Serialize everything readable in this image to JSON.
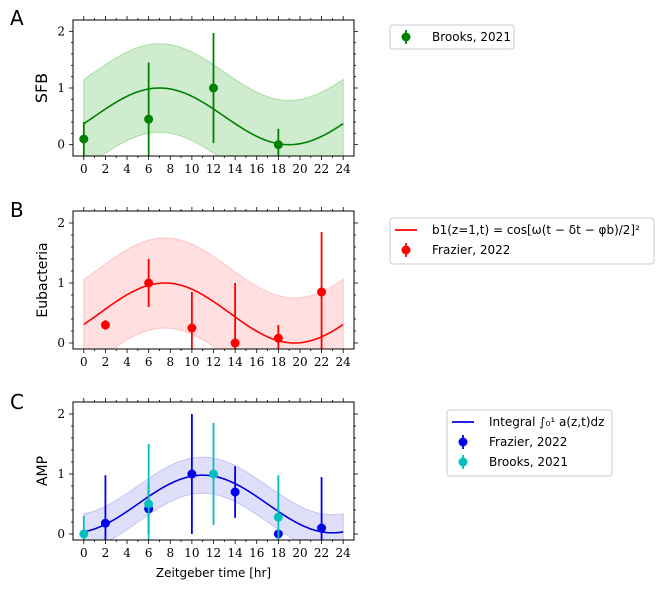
{
  "chart_data": [
    {
      "type": "line",
      "panel_label": "A",
      "ylabel": "SFB",
      "xlabel": "",
      "xlim": [
        -1,
        25
      ],
      "ylim": [
        -0.2,
        2.2
      ],
      "xticks": [
        0,
        2,
        4,
        6,
        8,
        10,
        12,
        14,
        16,
        18,
        20,
        22,
        24
      ],
      "yticks": [
        0,
        1,
        2
      ],
      "color": "#008000",
      "band_color": "#a8dca8",
      "curve": {
        "name": "",
        "amplitude_center": 0.5,
        "amplitude": 0.5,
        "peak_time": 7,
        "band_halfwidth": 0.78
      },
      "series": [
        {
          "name": "Brooks, 2021",
          "color": "#008000",
          "points": [
            {
              "x": 0,
              "y": 0.1,
              "err": 0.3
            },
            {
              "x": 6,
              "y": 0.45,
              "err": 1.0
            },
            {
              "x": 12,
              "y": 1.0,
              "err": 0.97
            },
            {
              "x": 18,
              "y": 0.0,
              "err": 0.28
            }
          ]
        }
      ],
      "legend": {
        "placement": "right",
        "entries": [
          {
            "label": "Brooks, 2021",
            "kind": "errorbar",
            "color": "#008000"
          }
        ]
      }
    },
    {
      "type": "line",
      "panel_label": "B",
      "ylabel": "Eubacteria",
      "xlabel": "",
      "xlim": [
        -1,
        25
      ],
      "ylim": [
        -0.1,
        2.2
      ],
      "xticks": [
        0,
        2,
        4,
        6,
        8,
        10,
        12,
        14,
        16,
        18,
        20,
        22,
        24
      ],
      "yticks": [
        0,
        1,
        2
      ],
      "color": "#ff0000",
      "band_color": "#ffc4c4",
      "curve": {
        "name": "b1(z=1,t) = cos[ω(t − δt − φb)/2]²",
        "amplitude_center": 0.5,
        "amplitude": 0.5,
        "peak_time": 7.5,
        "band_halfwidth": 0.75
      },
      "series": [
        {
          "name": "Frazier, 2022",
          "color": "#ff0000",
          "points": [
            {
              "x": 2,
              "y": 0.3,
              "err": 0.08
            },
            {
              "x": 6,
              "y": 1.0,
              "err": 0.4
            },
            {
              "x": 10,
              "y": 0.25,
              "err": 0.6
            },
            {
              "x": 14,
              "y": 0.0,
              "err": 1.0
            },
            {
              "x": 18,
              "y": 0.08,
              "err": 0.22
            },
            {
              "x": 22,
              "y": 0.85,
              "err": 1.0
            }
          ]
        }
      ],
      "legend": {
        "placement": "right",
        "entries": [
          {
            "label": "b1(z=1,t) = cos[ω(t − δt − φb)/2]²",
            "kind": "line",
            "color": "#ff0000"
          },
          {
            "label": "Frazier, 2022",
            "kind": "errorbar",
            "color": "#ff0000"
          }
        ]
      }
    },
    {
      "type": "line",
      "panel_label": "C",
      "ylabel": "AMP",
      "xlabel": "Zeitgeber time [hr]",
      "xlim": [
        -1,
        25
      ],
      "ylim": [
        -0.1,
        2.2
      ],
      "xticks": [
        0,
        2,
        4,
        6,
        8,
        10,
        12,
        14,
        16,
        18,
        20,
        22,
        24
      ],
      "yticks": [
        0,
        1,
        2
      ],
      "color": "#0000dd",
      "band_color": "#c4c4f4",
      "curve": {
        "name": "Integral ∫₀¹ a(z,t)dz",
        "amplitude_center": 0.5,
        "amplitude": 0.48,
        "peak_time": 11,
        "band_halfwidth": 0.3
      },
      "series": [
        {
          "name": "Frazier, 2022",
          "color": "#0000ee",
          "points": [
            {
              "x": 2,
              "y": 0.18,
              "err": 0.8
            },
            {
              "x": 6,
              "y": 0.42,
              "err": 0.42
            },
            {
              "x": 10,
              "y": 1.0,
              "err": 1.0
            },
            {
              "x": 14,
              "y": 0.7,
              "err": 0.43
            },
            {
              "x": 18,
              "y": 0.0,
              "err": 0.05
            },
            {
              "x": 22,
              "y": 0.1,
              "err": 0.85
            }
          ]
        },
        {
          "name": "Brooks, 2021",
          "color": "#00c0c0",
          "points": [
            {
              "x": 0,
              "y": 0.0,
              "err": 0.3
            },
            {
              "x": 6,
              "y": 0.5,
              "err": 1.0
            },
            {
              "x": 12,
              "y": 1.0,
              "err": 0.85
            },
            {
              "x": 18,
              "y": 0.28,
              "err": 0.7
            }
          ]
        }
      ],
      "legend": {
        "placement": "right",
        "entries": [
          {
            "label": "Integral ∫₀¹ a(z,t)dz",
            "kind": "line",
            "color": "#0000dd"
          },
          {
            "label": "Frazier, 2022",
            "kind": "errorbar",
            "color": "#0000ee"
          },
          {
            "label": "Brooks, 2021",
            "kind": "errorbar",
            "color": "#00c0c0"
          }
        ]
      }
    }
  ]
}
